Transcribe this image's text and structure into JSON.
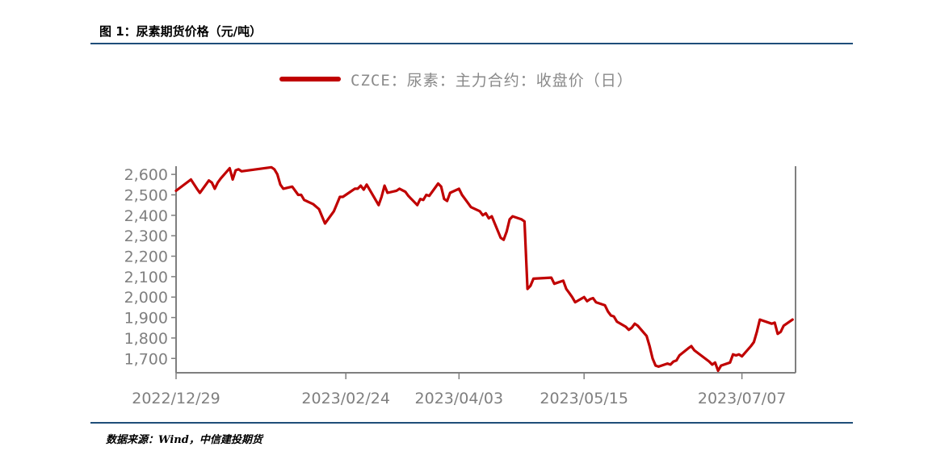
{
  "figure": {
    "title": "图 1：尿素期货价格（元/吨）",
    "source": "数据来源：Wind，中信建投期货"
  },
  "colors": {
    "series": "#c00000",
    "rule": "#1f4e79",
    "axis": "#7f7f7f"
  },
  "chart_data": {
    "type": "line",
    "series": [
      {
        "name": "CZCE：尿素：主力合约：收盘价（日）",
        "points": [
          [
            "2022-12-29",
            2520
          ],
          [
            "2023-01-03",
            2575
          ],
          [
            "2023-01-05",
            2530
          ],
          [
            "2023-01-06",
            2510
          ],
          [
            "2023-01-09",
            2570
          ],
          [
            "2023-01-10",
            2560
          ],
          [
            "2023-01-11",
            2530
          ],
          [
            "2023-01-12",
            2560
          ],
          [
            "2023-01-13",
            2580
          ],
          [
            "2023-01-16",
            2630
          ],
          [
            "2023-01-17",
            2575
          ],
          [
            "2023-01-18",
            2620
          ],
          [
            "2023-01-19",
            2625
          ],
          [
            "2023-01-20",
            2615
          ],
          [
            "2023-01-30",
            2635
          ],
          [
            "2023-01-31",
            2625
          ],
          [
            "2023-02-01",
            2600
          ],
          [
            "2023-02-02",
            2550
          ],
          [
            "2023-02-03",
            2530
          ],
          [
            "2023-02-06",
            2540
          ],
          [
            "2023-02-08",
            2500
          ],
          [
            "2023-02-09",
            2500
          ],
          [
            "2023-02-10",
            2475
          ],
          [
            "2023-02-13",
            2455
          ],
          [
            "2023-02-15",
            2430
          ],
          [
            "2023-02-17",
            2360
          ],
          [
            "2023-02-20",
            2420
          ],
          [
            "2023-02-22",
            2490
          ],
          [
            "2023-02-23",
            2490
          ],
          [
            "2023-02-24",
            2500
          ],
          [
            "2023-02-27",
            2530
          ],
          [
            "2023-02-28",
            2530
          ],
          [
            "2023-03-01",
            2545
          ],
          [
            "2023-03-02",
            2525
          ],
          [
            "2023-03-03",
            2550
          ],
          [
            "2023-03-06",
            2475
          ],
          [
            "2023-03-07",
            2450
          ],
          [
            "2023-03-08",
            2490
          ],
          [
            "2023-03-09",
            2545
          ],
          [
            "2023-03-10",
            2510
          ],
          [
            "2023-03-13",
            2520
          ],
          [
            "2023-03-14",
            2530
          ],
          [
            "2023-03-16",
            2515
          ],
          [
            "2023-03-17",
            2495
          ],
          [
            "2023-03-20",
            2450
          ],
          [
            "2023-03-21",
            2480
          ],
          [
            "2023-03-22",
            2475
          ],
          [
            "2023-03-23",
            2500
          ],
          [
            "2023-03-24",
            2495
          ],
          [
            "2023-03-27",
            2555
          ],
          [
            "2023-03-28",
            2540
          ],
          [
            "2023-03-29",
            2480
          ],
          [
            "2023-03-30",
            2470
          ],
          [
            "2023-03-31",
            2510
          ],
          [
            "2023-04-03",
            2530
          ],
          [
            "2023-04-04",
            2500
          ],
          [
            "2023-04-06",
            2460
          ],
          [
            "2023-04-07",
            2440
          ],
          [
            "2023-04-10",
            2420
          ],
          [
            "2023-04-11",
            2400
          ],
          [
            "2023-04-12",
            2410
          ],
          [
            "2023-04-13",
            2385
          ],
          [
            "2023-04-14",
            2395
          ],
          [
            "2023-04-17",
            2290
          ],
          [
            "2023-04-18",
            2280
          ],
          [
            "2023-04-19",
            2320
          ],
          [
            "2023-04-20",
            2380
          ],
          [
            "2023-04-21",
            2395
          ],
          [
            "2023-04-24",
            2380
          ],
          [
            "2023-04-25",
            2370
          ],
          [
            "2023-04-26",
            2040
          ],
          [
            "2023-04-27",
            2055
          ],
          [
            "2023-04-28",
            2090
          ],
          [
            "2023-05-04",
            2095
          ],
          [
            "2023-05-05",
            2065
          ],
          [
            "2023-05-08",
            2080
          ],
          [
            "2023-05-09",
            2040
          ],
          [
            "2023-05-10",
            2020
          ],
          [
            "2023-05-11",
            2000
          ],
          [
            "2023-05-12",
            1975
          ],
          [
            "2023-05-15",
            2000
          ],
          [
            "2023-05-16",
            1980
          ],
          [
            "2023-05-17",
            1990
          ],
          [
            "2023-05-18",
            1995
          ],
          [
            "2023-05-19",
            1975
          ],
          [
            "2023-05-22",
            1960
          ],
          [
            "2023-05-23",
            1930
          ],
          [
            "2023-05-24",
            1910
          ],
          [
            "2023-05-25",
            1905
          ],
          [
            "2023-05-26",
            1880
          ],
          [
            "2023-05-29",
            1855
          ],
          [
            "2023-05-30",
            1840
          ],
          [
            "2023-05-31",
            1850
          ],
          [
            "2023-06-01",
            1870
          ],
          [
            "2023-06-02",
            1860
          ],
          [
            "2023-06-05",
            1810
          ],
          [
            "2023-06-06",
            1760
          ],
          [
            "2023-06-07",
            1700
          ],
          [
            "2023-06-08",
            1665
          ],
          [
            "2023-06-09",
            1660
          ],
          [
            "2023-06-12",
            1675
          ],
          [
            "2023-06-13",
            1670
          ],
          [
            "2023-06-14",
            1685
          ],
          [
            "2023-06-15",
            1690
          ],
          [
            "2023-06-16",
            1715
          ],
          [
            "2023-06-19",
            1750
          ],
          [
            "2023-06-20",
            1760
          ],
          [
            "2023-06-21",
            1740
          ],
          [
            "2023-06-26",
            1685
          ],
          [
            "2023-06-27",
            1670
          ],
          [
            "2023-06-28",
            1680
          ],
          [
            "2023-06-29",
            1640
          ],
          [
            "2023-06-30",
            1665
          ],
          [
            "2023-07-03",
            1680
          ],
          [
            "2023-07-04",
            1720
          ],
          [
            "2023-07-05",
            1715
          ],
          [
            "2023-07-06",
            1720
          ],
          [
            "2023-07-07",
            1710
          ],
          [
            "2023-07-10",
            1760
          ],
          [
            "2023-07-11",
            1780
          ],
          [
            "2023-07-12",
            1830
          ],
          [
            "2023-07-13",
            1890
          ],
          [
            "2023-07-14",
            1885
          ],
          [
            "2023-07-17",
            1870
          ],
          [
            "2023-07-18",
            1875
          ],
          [
            "2023-07-19",
            1820
          ],
          [
            "2023-07-20",
            1830
          ],
          [
            "2023-07-21",
            1860
          ],
          [
            "2023-07-24",
            1890
          ]
        ]
      }
    ],
    "y_ticks": [
      1700,
      1800,
      1900,
      2000,
      2100,
      2200,
      2300,
      2400,
      2500,
      2600
    ],
    "y_tick_labels": [
      "1,700",
      "1,800",
      "1,900",
      "2,000",
      "2,100",
      "2,200",
      "2,300",
      "2,400",
      "2,500",
      "2,600"
    ],
    "x_ticks": [
      "2022-12-29",
      "2023-02-24",
      "2023-04-03",
      "2023-05-15",
      "2023-07-07"
    ],
    "x_tick_labels": [
      "2022/12/29",
      "2023/02/24",
      "2023/04/03",
      "2023/05/15",
      "2023/07/07"
    ],
    "ylim": [
      1630,
      2640
    ],
    "xlim": [
      "2022-12-29",
      "2023-07-25"
    ],
    "grid": false,
    "legend": "top-center",
    "title": "",
    "xlabel": "",
    "ylabel": ""
  }
}
